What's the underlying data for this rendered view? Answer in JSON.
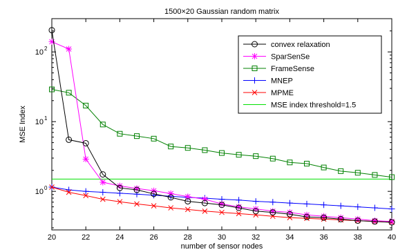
{
  "chart_data": {
    "type": "line",
    "title": "1500×20 Gaussian random matrix",
    "xlabel": "number of sensor nodes",
    "ylabel": "MSE Index",
    "xlim": [
      20,
      40
    ],
    "ylim": [
      0.28,
      300
    ],
    "yscale": "log",
    "grid": false,
    "legend_position": "top-right",
    "x_ticks": [
      20,
      22,
      24,
      26,
      28,
      30,
      32,
      34,
      36,
      38,
      40
    ],
    "y_ticks": [
      1,
      10,
      100
    ],
    "y_tick_labels": [
      [
        "10",
        "0"
      ],
      [
        "10",
        "1"
      ],
      [
        "10",
        "2"
      ]
    ],
    "x": [
      20,
      21,
      22,
      23,
      24,
      25,
      26,
      27,
      28,
      29,
      30,
      31,
      32,
      33,
      34,
      35,
      36,
      37,
      38,
      39,
      40
    ],
    "series": [
      {
        "name": "convex relaxation",
        "color": "#000000",
        "marker": "circle",
        "values": [
          205,
          5.5,
          4.9,
          1.75,
          1.12,
          1.05,
          0.92,
          0.82,
          0.72,
          0.68,
          0.64,
          0.58,
          0.52,
          0.5,
          0.47,
          0.43,
          0.42,
          0.4,
          0.38,
          0.37,
          0.36
        ]
      },
      {
        "name": "SparSenSe",
        "color": "#ff00ff",
        "marker": "star",
        "values": [
          140,
          110,
          2.9,
          1.35,
          1.2,
          1.1,
          1.02,
          0.93,
          0.84,
          0.77,
          0.66,
          0.6,
          0.56,
          0.52,
          0.5,
          0.46,
          0.44,
          0.42,
          0.4,
          0.38,
          0.37
        ]
      },
      {
        "name": "FrameSense",
        "color": "#008000",
        "marker": "square",
        "values": [
          29,
          26,
          17,
          9.1,
          6.7,
          6.2,
          5.7,
          4.4,
          4.2,
          3.9,
          3.55,
          3.35,
          3.2,
          2.95,
          2.6,
          2.5,
          2.2,
          1.95,
          1.85,
          1.72,
          1.6
        ]
      },
      {
        "name": "MNEP",
        "color": "#0000ff",
        "marker": "plus",
        "values": [
          1.15,
          1.05,
          1.0,
          0.97,
          0.94,
          0.91,
          0.88,
          0.85,
          0.82,
          0.8,
          0.77,
          0.75,
          0.72,
          0.7,
          0.68,
          0.66,
          0.64,
          0.62,
          0.6,
          0.58,
          0.56
        ]
      },
      {
        "name": "MPME",
        "color": "#ff0000",
        "marker": "x",
        "values": [
          1.15,
          0.97,
          0.87,
          0.77,
          0.71,
          0.66,
          0.62,
          0.58,
          0.55,
          0.52,
          0.5,
          0.48,
          0.46,
          0.44,
          0.42,
          0.41,
          0.4,
          0.39,
          0.38,
          0.37,
          0.36
        ]
      },
      {
        "name": "MSE index threshold=1.5",
        "color": "#00e000",
        "marker": "none",
        "values": [
          1.5,
          1.5,
          1.5,
          1.5,
          1.5,
          1.5,
          1.5,
          1.5,
          1.5,
          1.5,
          1.5,
          1.5,
          1.5,
          1.5,
          1.5,
          1.5,
          1.5,
          1.5,
          1.5,
          1.5,
          1.5
        ]
      }
    ]
  }
}
